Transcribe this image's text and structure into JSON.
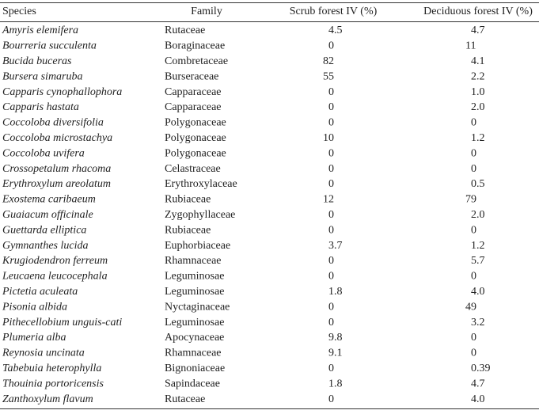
{
  "table": {
    "header": [
      "Species",
      "Family",
      "Scrub forest IV (%)",
      "Deciduous forest IV (%)"
    ],
    "rows": [
      [
        "Amyris elemifera",
        "Rutaceae",
        "4.5",
        "4.7"
      ],
      [
        "Bourreria succulenta",
        "Boraginaceae",
        "0",
        "11"
      ],
      [
        "Bucida buceras",
        "Combretaceae",
        "82",
        "4.1"
      ],
      [
        "Bursera simaruba",
        "Burseraceae",
        "55",
        "2.2"
      ],
      [
        "Capparis cynophallophora",
        "Capparaceae",
        "0",
        "1.0"
      ],
      [
        "Capparis hastata",
        "Capparaceae",
        "0",
        "2.0"
      ],
      [
        "Coccoloba diversifolia",
        "Polygonaceae",
        "0",
        "0"
      ],
      [
        "Coccoloba microstachya",
        "Polygonaceae",
        "10",
        "1.2"
      ],
      [
        "Coccoloba uvifera",
        "Polygonaceae",
        "0",
        "0"
      ],
      [
        "Crossopetalum rhacoma",
        "Celastraceae",
        "0",
        "0"
      ],
      [
        "Erythroxylum areolatum",
        "Erythroxylaceae",
        "0",
        "0.5"
      ],
      [
        "Exostema caribaeum",
        "Rubiaceae",
        "12",
        "79"
      ],
      [
        "Guaiacum officinale",
        "Zygophyllaceae",
        "0",
        "2.0"
      ],
      [
        "Guettarda elliptica",
        "Rubiaceae",
        "0",
        "0"
      ],
      [
        "Gymnanthes lucida",
        "Euphorbiaceae",
        "3.7",
        "1.2"
      ],
      [
        "Krugiodendron ferreum",
        "Rhamnaceae",
        "0",
        "5.7"
      ],
      [
        "Leucaena leucocephala",
        "Leguminosae",
        "0",
        "0"
      ],
      [
        "Pictetia aculeata",
        "Leguminosae",
        "1.8",
        "4.0"
      ],
      [
        "Pisonia albida",
        "Nyctaginaceae",
        "0",
        "49"
      ],
      [
        "Pithecellobium unguis-cati",
        "Leguminosae",
        "0",
        "3.2"
      ],
      [
        "Plumeria alba",
        "Apocynaceae",
        "9.8",
        "0"
      ],
      [
        "Reynosia uncinata",
        "Rhamnaceae",
        "9.1",
        "0"
      ],
      [
        "Tabebuia heterophylla",
        "Bignoniaceae",
        "0",
        "0.39"
      ],
      [
        "Thouinia portoricensis",
        "Sapindaceae",
        "1.8",
        "4.7"
      ],
      [
        "Zanthoxylum flavum",
        "Rutaceae",
        "0",
        "4.0"
      ]
    ]
  }
}
